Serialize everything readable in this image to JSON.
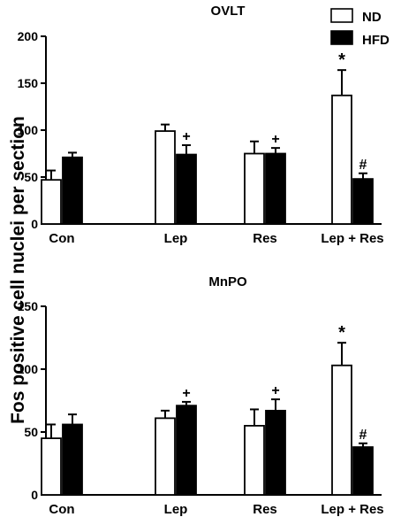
{
  "ylabel": "Fos positive cell nuclei per section",
  "legend": {
    "position": "top-right",
    "items": [
      {
        "name": "ND",
        "color": "#ffffff"
      },
      {
        "name": "HFD",
        "color": "#000000"
      }
    ]
  },
  "chart_data": [
    {
      "type": "bar",
      "title": "OVLT",
      "categories": [
        "Con",
        "Lep",
        "Res",
        "Lep + Res"
      ],
      "ylim": [
        0,
        200
      ],
      "yticks": [
        0,
        50,
        100,
        150,
        200
      ],
      "grid": false,
      "series": [
        {
          "name": "ND",
          "color": "#ffffff",
          "values": [
            47,
            99,
            75,
            137
          ],
          "errors": [
            10,
            7,
            13,
            27
          ],
          "annotations": [
            "",
            "",
            "",
            "*"
          ]
        },
        {
          "name": "HFD",
          "color": "#000000",
          "values": [
            71,
            74,
            75,
            48
          ],
          "errors": [
            5,
            10,
            6,
            6
          ],
          "annotations": [
            "",
            "+",
            "+",
            "#"
          ]
        }
      ]
    },
    {
      "type": "bar",
      "title": "MnPO",
      "categories": [
        "Con",
        "Lep",
        "Res",
        "Lep + Res"
      ],
      "ylim": [
        0,
        150
      ],
      "yticks": [
        0,
        50,
        100,
        150
      ],
      "grid": false,
      "series": [
        {
          "name": "ND",
          "color": "#ffffff",
          "values": [
            45,
            61,
            55,
            103
          ],
          "errors": [
            11,
            6,
            13,
            18
          ],
          "annotations": [
            "",
            "",
            "",
            "*"
          ]
        },
        {
          "name": "HFD",
          "color": "#000000",
          "values": [
            56,
            71,
            67,
            38
          ],
          "errors": [
            8,
            3,
            9,
            3
          ],
          "annotations": [
            "",
            "+",
            "+",
            "#"
          ]
        }
      ]
    }
  ]
}
